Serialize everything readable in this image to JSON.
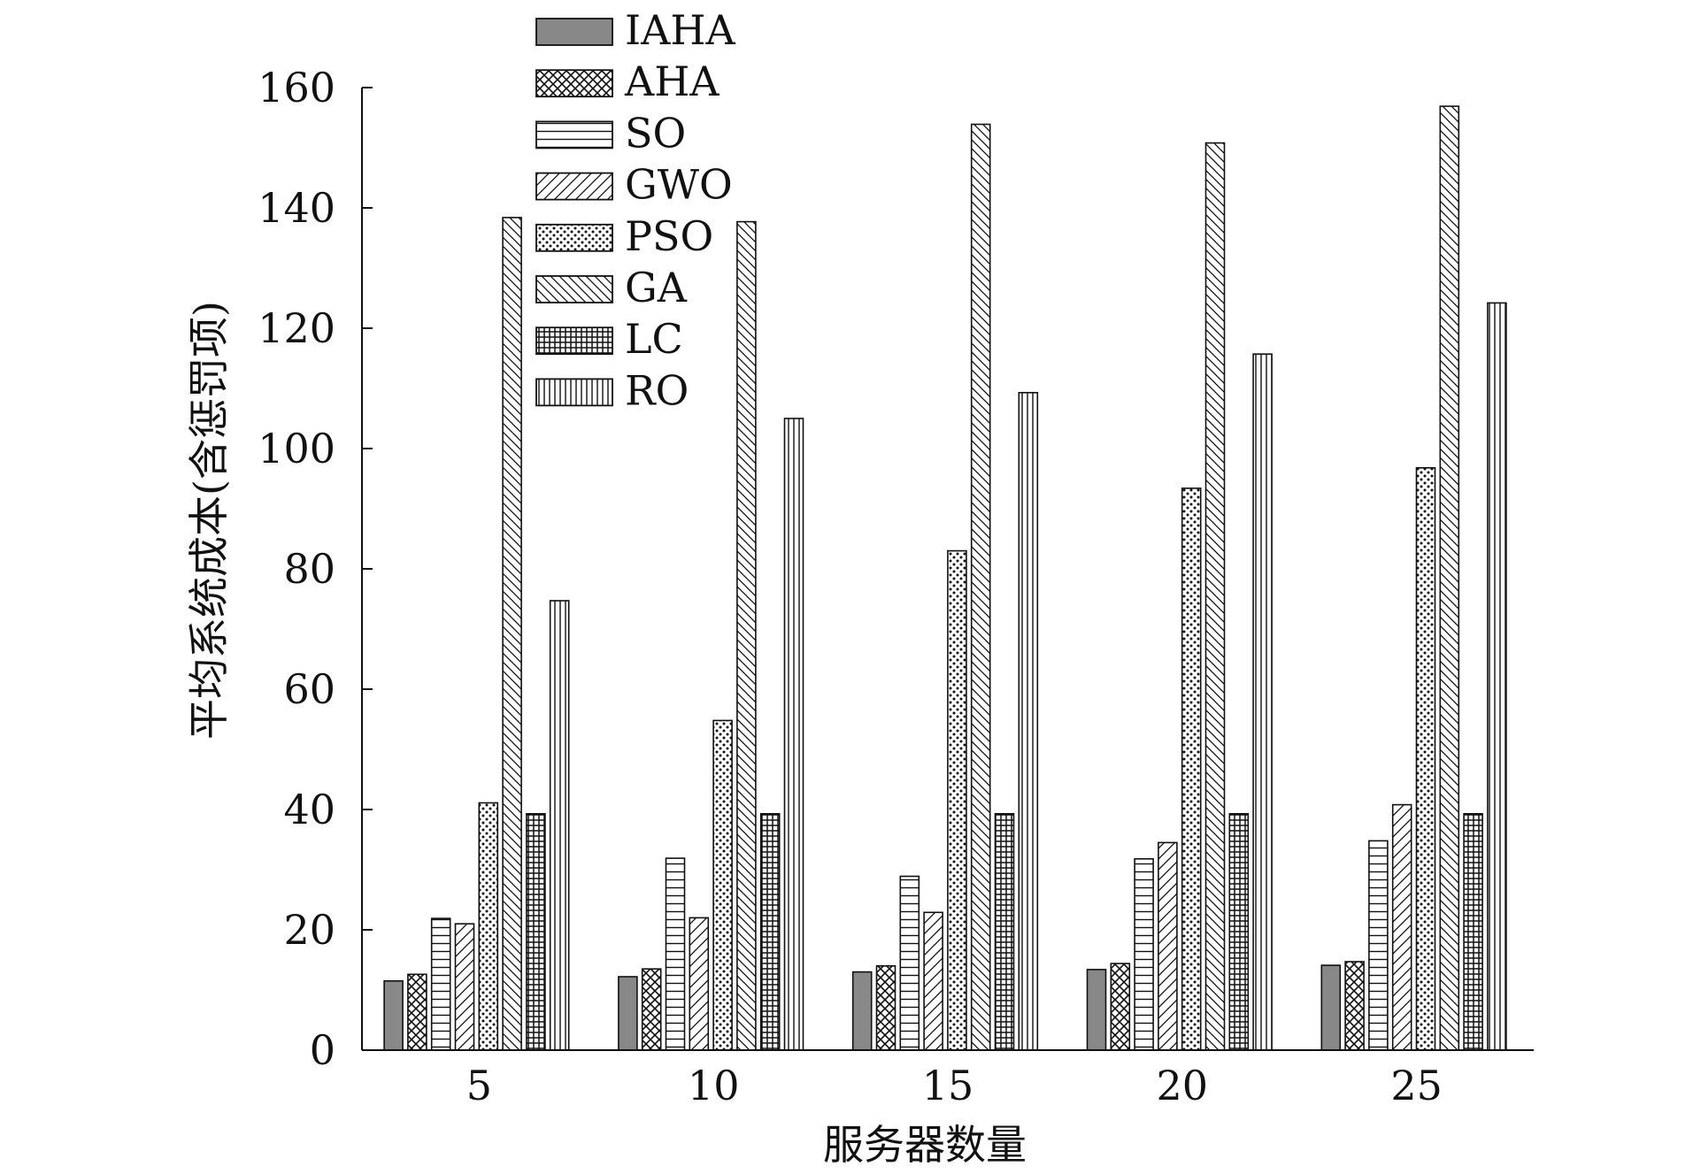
{
  "chart_data": {
    "type": "bar",
    "title": "",
    "xlabel": "服务器数量",
    "ylabel": "平均系统成本(含惩罚项)",
    "categories": [
      "5",
      "10",
      "15",
      "20",
      "25"
    ],
    "ylim": [
      0,
      160
    ],
    "yticks": [
      "0",
      "20",
      "40",
      "60",
      "80",
      "100",
      "120",
      "140",
      "160"
    ],
    "grid": false,
    "legend_position": "top-left",
    "series": [
      {
        "name": "IAHA",
        "pattern": "solid-gray",
        "values": [
          11.5,
          12.2,
          13.0,
          13.4,
          14.1
        ]
      },
      {
        "name": "AHA",
        "pattern": "crosshatch",
        "values": [
          12.6,
          13.5,
          14.0,
          14.4,
          14.7
        ]
      },
      {
        "name": "SO",
        "pattern": "horizontal",
        "values": [
          21.9,
          31.9,
          28.9,
          31.8,
          34.8
        ]
      },
      {
        "name": "GWO",
        "pattern": "diagonal-up",
        "values": [
          21.0,
          22.0,
          22.9,
          34.5,
          40.8
        ]
      },
      {
        "name": "PSO",
        "pattern": "dots",
        "values": [
          41.1,
          54.8,
          83.0,
          93.4,
          96.8
        ]
      },
      {
        "name": "GA",
        "pattern": "diagonal-down",
        "values": [
          138.4,
          137.7,
          153.9,
          150.8,
          156.9
        ]
      },
      {
        "name": "LC",
        "pattern": "grid",
        "values": [
          39.3,
          39.3,
          39.3,
          39.3,
          39.3
        ]
      },
      {
        "name": "RO",
        "pattern": "vertical",
        "values": [
          74.7,
          105.0,
          109.3,
          115.7,
          124.2
        ]
      }
    ],
    "colors": {
      "iaha_fill": "#888888",
      "line": "#111111",
      "background": "#ffffff"
    }
  }
}
